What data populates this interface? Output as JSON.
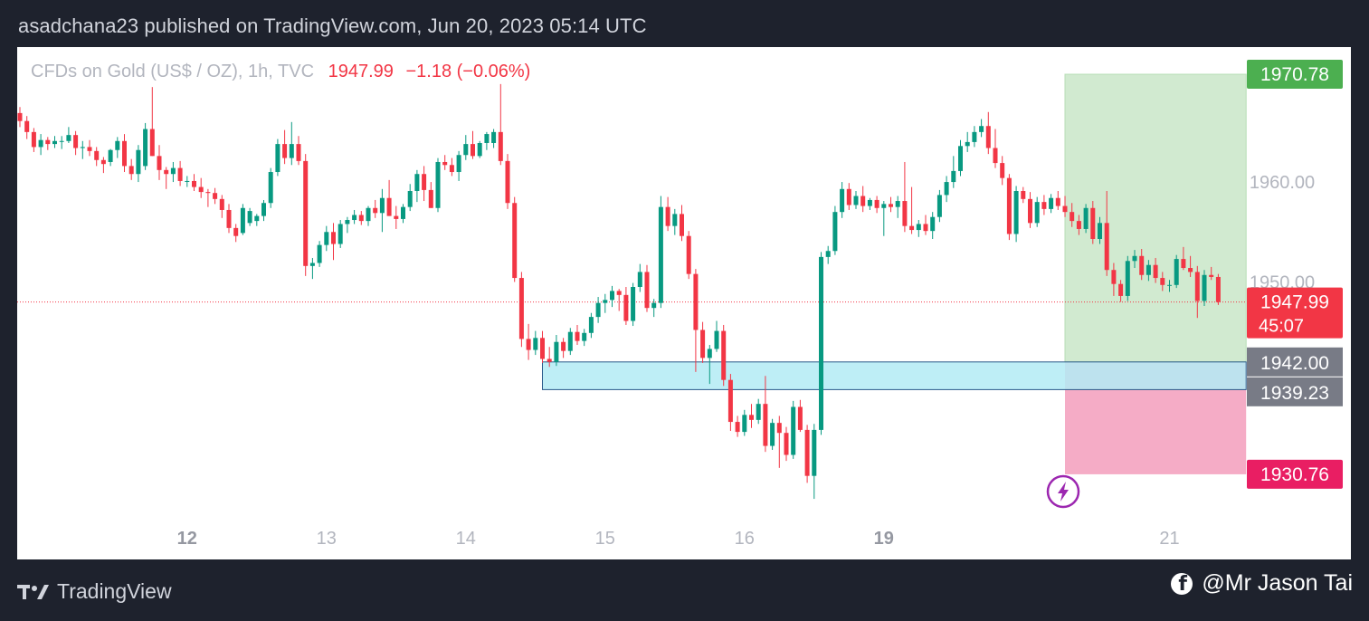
{
  "header": {
    "publish_line": "asadchana23 published on TradingView.com, Jun 20, 2023 05:14 UTC"
  },
  "legend": {
    "symbol": "CFDs on Gold (US$ / OZ), 1h, TVC",
    "last": "1947.99",
    "change": "−1.18 (−0.06%)"
  },
  "footer": {
    "brand": "TradingView",
    "credit": "@Mr Jason Tai",
    "brand_icon": "tradingview-logo-icon",
    "credit_icon": "facebook-icon"
  },
  "colors": {
    "up": "#089981",
    "down": "#f23645",
    "tp_zone": "#d1ead0",
    "sl_zone": "#f5acc6",
    "demand_zone": "#b3ebf5",
    "tp_tag": "#4caf50",
    "sl_tag": "#e91e63",
    "entry_tag": "#787b86",
    "price_tag": "#f23645"
  },
  "chart_data": {
    "type": "candlestick",
    "instrument": "CFDs on Gold (US$ / OZ)",
    "interval": "1h",
    "currency_label": "USD",
    "y_axis": {
      "ticks": [
        1950,
        1960
      ],
      "tick_labels": [
        "1950.00",
        "1960.00"
      ],
      "ylim": [
        1925.5,
        1973.5
      ]
    },
    "x_axis": {
      "labels": [
        {
          "text": "12",
          "bar": 24,
          "bold": true
        },
        {
          "text": "13",
          "bar": 44,
          "bold": false
        },
        {
          "text": "14",
          "bar": 64,
          "bold": false
        },
        {
          "text": "15",
          "bar": 84,
          "bold": false
        },
        {
          "text": "16",
          "bar": 104,
          "bold": false
        },
        {
          "text": "19",
          "bar": 124,
          "bold": true
        },
        {
          "text": "21",
          "bar": 165,
          "bold": false
        }
      ]
    },
    "last_price": {
      "value": 1947.99,
      "label": "1947.99",
      "countdown": "45:07"
    },
    "position": {
      "take_profit": {
        "value": 1970.78,
        "label": "1970.78"
      },
      "entry": {
        "value": 1942.0,
        "label": "1942.00"
      },
      "stop_loss": {
        "value": 1930.76,
        "label": "1930.76"
      },
      "from_bar": 150,
      "to_bar": 176
    },
    "zone": {
      "top": 1942.0,
      "bottom": 1939.23,
      "label": "1939.23",
      "from_bar": 75,
      "to_bar": 176
    },
    "alert_icon": "lightning-bolt-icon",
    "ohlc": [
      [
        1966.9,
        1967.5,
        1965.5,
        1966.1
      ],
      [
        1966.1,
        1966.6,
        1964.3,
        1965.0
      ],
      [
        1965.0,
        1965.4,
        1963.0,
        1963.5
      ],
      [
        1963.5,
        1964.8,
        1962.7,
        1964.2
      ],
      [
        1964.2,
        1964.5,
        1963.2,
        1963.8
      ],
      [
        1963.8,
        1964.6,
        1963.4,
        1964.1
      ],
      [
        1964.1,
        1964.6,
        1963.3,
        1964.1
      ],
      [
        1964.1,
        1965.5,
        1963.9,
        1964.7
      ],
      [
        1964.7,
        1965.1,
        1962.7,
        1963.4
      ],
      [
        1963.4,
        1964.1,
        1962.3,
        1963.5
      ],
      [
        1963.5,
        1964.2,
        1962.6,
        1963.1
      ],
      [
        1963.1,
        1963.5,
        1961.6,
        1962.2
      ],
      [
        1962.2,
        1962.5,
        1960.9,
        1961.8
      ],
      [
        1962.0,
        1963.3,
        1961.6,
        1963.2
      ],
      [
        1963.2,
        1964.5,
        1962.4,
        1964.1
      ],
      [
        1964.1,
        1964.8,
        1961.0,
        1961.6
      ],
      [
        1961.6,
        1962.3,
        1960.2,
        1960.8
      ],
      [
        1960.8,
        1963.7,
        1960.0,
        1963.2
      ],
      [
        1961.6,
        1965.9,
        1961.2,
        1965.3
      ],
      [
        1965.3,
        1969.5,
        1962.6,
        1962.6
      ],
      [
        1962.6,
        1963.7,
        1960.2,
        1961.2
      ],
      [
        1961.2,
        1961.5,
        1959.3,
        1960.8
      ],
      [
        1960.8,
        1962.0,
        1960.0,
        1961.4
      ],
      [
        1961.4,
        1962.1,
        1959.6,
        1960.1
      ],
      [
        1960.1,
        1960.6,
        1959.5,
        1960.1
      ],
      [
        1960.1,
        1960.8,
        1959.1,
        1959.5
      ],
      [
        1959.5,
        1960.4,
        1958.4,
        1959.0
      ],
      [
        1959.0,
        1959.3,
        1957.5,
        1958.9
      ],
      [
        1958.9,
        1959.4,
        1957.8,
        1958.3
      ],
      [
        1958.3,
        1958.7,
        1956.4,
        1957.2
      ],
      [
        1957.2,
        1957.8,
        1954.9,
        1955.4
      ],
      [
        1955.4,
        1955.8,
        1954.0,
        1954.6
      ],
      [
        1954.9,
        1957.8,
        1954.7,
        1957.4
      ],
      [
        1955.9,
        1957.4,
        1955.6,
        1957.1
      ],
      [
        1956.1,
        1956.8,
        1955.6,
        1956.6
      ],
      [
        1956.6,
        1958.2,
        1956.1,
        1957.9
      ],
      [
        1957.9,
        1961.4,
        1957.4,
        1961.0
      ],
      [
        1961.0,
        1964.3,
        1960.6,
        1963.8
      ],
      [
        1963.8,
        1965.2,
        1961.8,
        1962.4
      ],
      [
        1962.4,
        1966.0,
        1961.7,
        1963.8
      ],
      [
        1963.8,
        1964.6,
        1961.7,
        1962.1
      ],
      [
        1962.1,
        1962.8,
        1950.6,
        1951.6
      ],
      [
        1951.6,
        1952.4,
        1950.3,
        1951.9
      ],
      [
        1951.9,
        1954.1,
        1951.5,
        1953.7
      ],
      [
        1953.7,
        1955.6,
        1953.1,
        1955.0
      ],
      [
        1955.0,
        1955.9,
        1952.2,
        1953.8
      ],
      [
        1953.8,
        1956.2,
        1953.4,
        1955.8
      ],
      [
        1955.8,
        1956.5,
        1954.9,
        1956.2
      ],
      [
        1956.2,
        1957.2,
        1955.8,
        1956.7
      ],
      [
        1956.7,
        1957.1,
        1955.7,
        1956.1
      ],
      [
        1956.1,
        1957.6,
        1955.6,
        1957.4
      ],
      [
        1957.4,
        1958.2,
        1956.4,
        1956.9
      ],
      [
        1956.9,
        1959.3,
        1955.0,
        1958.4
      ],
      [
        1958.4,
        1960.2,
        1956.6,
        1956.6
      ],
      [
        1956.6,
        1957.6,
        1955.3,
        1956.3
      ],
      [
        1956.3,
        1957.8,
        1955.9,
        1957.5
      ],
      [
        1957.5,
        1959.8,
        1957.1,
        1959.1
      ],
      [
        1959.1,
        1961.2,
        1958.0,
        1960.8
      ],
      [
        1960.8,
        1961.6,
        1958.1,
        1959.2
      ],
      [
        1959.2,
        1960.0,
        1957.4,
        1957.4
      ],
      [
        1957.4,
        1962.4,
        1957.0,
        1962.0
      ],
      [
        1962.0,
        1962.7,
        1961.2,
        1961.7
      ],
      [
        1961.7,
        1962.4,
        1960.6,
        1961.0
      ],
      [
        1961.0,
        1963.1,
        1960.1,
        1962.7
      ],
      [
        1962.7,
        1964.7,
        1962.2,
        1963.8
      ],
      [
        1963.8,
        1965.1,
        1962.3,
        1962.6
      ],
      [
        1962.6,
        1964.1,
        1962.4,
        1963.9
      ],
      [
        1963.9,
        1965.0,
        1963.2,
        1964.8
      ],
      [
        1963.9,
        1965.3,
        1963.4,
        1965.0
      ],
      [
        1965.0,
        1969.8,
        1961.7,
        1962.1
      ],
      [
        1962.1,
        1962.8,
        1957.3,
        1957.9
      ],
      [
        1957.9,
        1958.5,
        1950.0,
        1950.4
      ],
      [
        1950.4,
        1951.0,
        1943.5,
        1944.3
      ],
      [
        1944.3,
        1945.8,
        1942.2,
        1943.2
      ],
      [
        1943.2,
        1945.1,
        1942.7,
        1944.4
      ],
      [
        1944.4,
        1945.1,
        1941.9,
        1942.3
      ],
      [
        1942.3,
        1943.5,
        1941.5,
        1942.0
      ],
      [
        1942.0,
        1944.7,
        1941.6,
        1944.0
      ],
      [
        1944.0,
        1944.4,
        1942.4,
        1943.1
      ],
      [
        1943.1,
        1945.4,
        1942.7,
        1945.0
      ],
      [
        1945.0,
        1945.7,
        1943.7,
        1944.1
      ],
      [
        1944.1,
        1945.3,
        1943.6,
        1944.9
      ],
      [
        1944.9,
        1946.9,
        1944.4,
        1946.5
      ],
      [
        1946.5,
        1948.5,
        1945.9,
        1947.9
      ],
      [
        1947.9,
        1948.8,
        1946.9,
        1948.2
      ],
      [
        1948.2,
        1949.6,
        1947.5,
        1949.1
      ],
      [
        1949.1,
        1949.3,
        1947.1,
        1948.7
      ],
      [
        1948.7,
        1949.5,
        1945.7,
        1946.1
      ],
      [
        1946.1,
        1949.9,
        1945.6,
        1949.5
      ],
      [
        1949.5,
        1951.8,
        1949.0,
        1951.0
      ],
      [
        1951.0,
        1951.7,
        1947.0,
        1947.4
      ],
      [
        1947.4,
        1948.3,
        1946.5,
        1947.9
      ],
      [
        1947.9,
        1958.6,
        1947.4,
        1957.5
      ],
      [
        1957.5,
        1958.5,
        1955.1,
        1955.6
      ],
      [
        1955.6,
        1957.3,
        1954.7,
        1956.8
      ],
      [
        1956.8,
        1957.7,
        1954.1,
        1954.6
      ],
      [
        1954.6,
        1955.1,
        1950.3,
        1950.8
      ],
      [
        1950.8,
        1951.3,
        1941.0,
        1945.2
      ],
      [
        1945.2,
        1946.0,
        1941.9,
        1942.4
      ],
      [
        1942.4,
        1943.7,
        1939.8,
        1943.3
      ],
      [
        1943.3,
        1946.1,
        1943.0,
        1945.1
      ],
      [
        1945.1,
        1945.7,
        1939.6,
        1940.2
      ],
      [
        1940.2,
        1940.8,
        1935.1,
        1936.0
      ],
      [
        1936.0,
        1936.6,
        1934.5,
        1935.0
      ],
      [
        1935.0,
        1937.2,
        1934.6,
        1936.7
      ],
      [
        1936.7,
        1937.8,
        1935.4,
        1936.2
      ],
      [
        1936.2,
        1938.3,
        1935.8,
        1937.8
      ],
      [
        1937.8,
        1940.6,
        1933.0,
        1933.6
      ],
      [
        1933.6,
        1936.3,
        1933.2,
        1935.9
      ],
      [
        1935.9,
        1936.6,
        1931.4,
        1934.9
      ],
      [
        1934.9,
        1935.5,
        1932.1,
        1932.7
      ],
      [
        1932.7,
        1938.1,
        1932.3,
        1937.5
      ],
      [
        1937.5,
        1938.2,
        1935.0,
        1935.2
      ],
      [
        1935.2,
        1935.7,
        1929.9,
        1930.6
      ],
      [
        1930.6,
        1935.8,
        1928.3,
        1935.2
      ],
      [
        1935.2,
        1953.0,
        1934.7,
        1952.5
      ],
      [
        1952.5,
        1953.6,
        1951.8,
        1953.1
      ],
      [
        1953.1,
        1957.6,
        1952.7,
        1957.0
      ],
      [
        1957.0,
        1960.0,
        1956.4,
        1959.3
      ],
      [
        1959.3,
        1959.9,
        1957.2,
        1957.7
      ],
      [
        1957.7,
        1959.1,
        1957.3,
        1958.6
      ],
      [
        1958.6,
        1959.6,
        1957.0,
        1957.6
      ],
      [
        1957.6,
        1958.4,
        1957.2,
        1958.2
      ],
      [
        1958.2,
        1958.6,
        1956.9,
        1957.4
      ],
      [
        1957.4,
        1958.1,
        1954.6,
        1957.8
      ],
      [
        1957.8,
        1958.5,
        1957.0,
        1957.5
      ],
      [
        1957.5,
        1958.6,
        1956.4,
        1958.1
      ],
      [
        1958.1,
        1962.0,
        1955.0,
        1955.6
      ],
      [
        1955.6,
        1959.5,
        1954.8,
        1955.2
      ],
      [
        1955.2,
        1956.2,
        1954.5,
        1955.8
      ],
      [
        1955.8,
        1956.7,
        1954.7,
        1955.1
      ],
      [
        1955.1,
        1957.0,
        1954.3,
        1956.5
      ],
      [
        1956.5,
        1959.2,
        1956.0,
        1958.7
      ],
      [
        1958.7,
        1960.6,
        1958.0,
        1960.0
      ],
      [
        1960.0,
        1962.6,
        1959.4,
        1961.1
      ],
      [
        1961.1,
        1964.2,
        1960.6,
        1963.6
      ],
      [
        1963.6,
        1965.0,
        1963.0,
        1964.0
      ],
      [
        1964.0,
        1965.6,
        1963.5,
        1965.0
      ],
      [
        1965.0,
        1966.3,
        1964.5,
        1965.6
      ],
      [
        1965.6,
        1967.0,
        1962.8,
        1963.4
      ],
      [
        1963.4,
        1965.3,
        1961.4,
        1961.9
      ],
      [
        1961.9,
        1962.6,
        1959.7,
        1960.4
      ],
      [
        1960.4,
        1960.8,
        1954.2,
        1954.8
      ],
      [
        1954.8,
        1959.6,
        1954.0,
        1959.1
      ],
      [
        1959.1,
        1959.5,
        1957.9,
        1958.3
      ],
      [
        1958.3,
        1959.0,
        1955.4,
        1955.9
      ],
      [
        1955.9,
        1958.5,
        1955.5,
        1958.0
      ],
      [
        1958.0,
        1958.7,
        1956.7,
        1957.3
      ],
      [
        1957.3,
        1958.8,
        1956.9,
        1958.4
      ],
      [
        1958.4,
        1959.1,
        1957.2,
        1957.6
      ],
      [
        1957.6,
        1958.6,
        1956.5,
        1957.0
      ],
      [
        1957.0,
        1957.9,
        1955.5,
        1956.1
      ],
      [
        1956.1,
        1956.7,
        1954.7,
        1955.3
      ],
      [
        1955.3,
        1957.8,
        1954.9,
        1957.4
      ],
      [
        1957.4,
        1958.1,
        1953.8,
        1954.3
      ],
      [
        1954.3,
        1956.5,
        1953.8,
        1955.9
      ],
      [
        1955.9,
        1959.1,
        1950.6,
        1951.2
      ],
      [
        1951.2,
        1951.9,
        1948.6,
        1949.8
      ],
      [
        1949.8,
        1950.2,
        1948.0,
        1948.6
      ],
      [
        1948.6,
        1952.6,
        1948.1,
        1952.1
      ],
      [
        1952.1,
        1953.2,
        1951.4,
        1952.6
      ],
      [
        1952.6,
        1953.3,
        1950.2,
        1950.7
      ],
      [
        1950.7,
        1952.2,
        1950.1,
        1951.7
      ],
      [
        1951.7,
        1952.4,
        1949.9,
        1950.4
      ],
      [
        1950.4,
        1951.0,
        1949.1,
        1949.7
      ],
      [
        1949.7,
        1950.2,
        1949.0,
        1949.7
      ],
      [
        1949.7,
        1952.7,
        1949.4,
        1952.3
      ],
      [
        1952.3,
        1953.5,
        1951.2,
        1951.4
      ],
      [
        1951.4,
        1952.6,
        1950.5,
        1951.0
      ],
      [
        1951.0,
        1951.6,
        1946.4,
        1948.1
      ],
      [
        1948.1,
        1951.2,
        1947.6,
        1950.7
      ],
      [
        1950.7,
        1951.5,
        1950.2,
        1950.5
      ],
      [
        1950.5,
        1950.8,
        1947.7,
        1947.99
      ]
    ]
  }
}
